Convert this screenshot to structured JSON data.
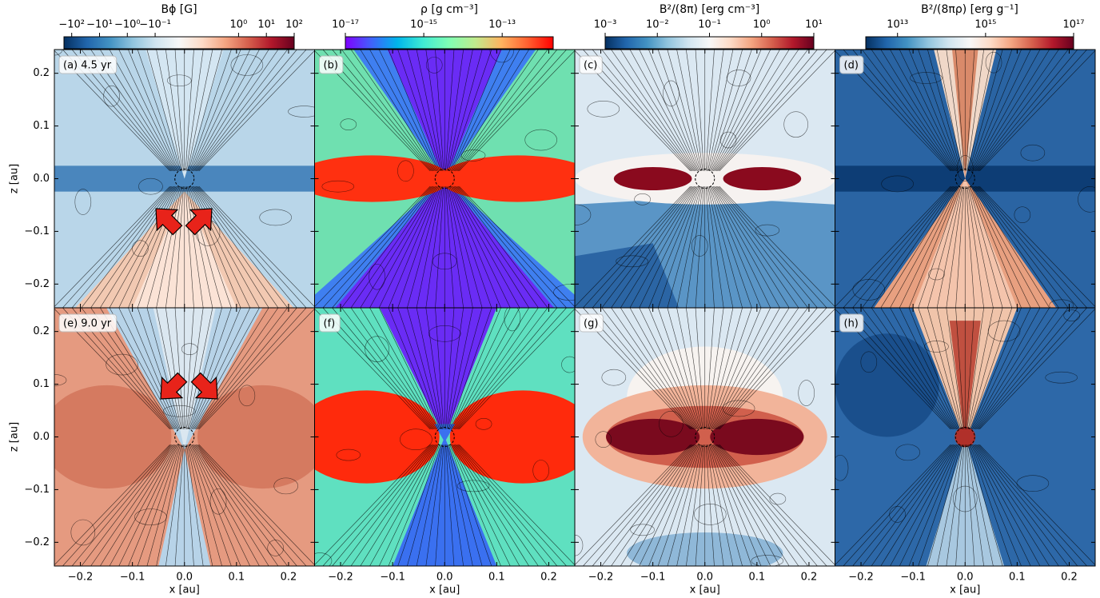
{
  "figure": {
    "xlim": [
      -0.25,
      0.25
    ],
    "ylim": [
      -0.245,
      0.245
    ],
    "xticks": [
      {
        "value": -0.2,
        "label": "−0.2"
      },
      {
        "value": -0.1,
        "label": "−0.1"
      },
      {
        "value": 0,
        "label": "0.0"
      },
      0.1,
      0.2
    ],
    "yticks": [
      0.2,
      0.1,
      {
        "value": 0,
        "label": "0.0"
      },
      {
        "value": -0.1,
        "label": "−0.1"
      },
      {
        "value": -0.2,
        "label": "−0.2"
      }
    ],
    "xlabel": "x [au]",
    "ylabel": "z [au]",
    "colorbars": [
      {
        "label": "Bϕ [G]",
        "scale": "symlog",
        "linthresh": 0.1,
        "lim": [
          -190,
          100
        ],
        "colors": [
          "#053061",
          "#2166ac",
          "#4393c3",
          "#92c5de",
          "#d1e5f0",
          "#f7f7f7",
          "#fddbc7",
          "#f4a582",
          "#d6604d",
          "#b2182b",
          "#67001f"
        ],
        "ticks": [
          {
            "value": -100,
            "label": "−10²"
          },
          {
            "value": -10,
            "label": "−10¹"
          },
          {
            "value": -1,
            "label": "−10⁰"
          },
          {
            "value": -0.1,
            "label": "−10⁻¹"
          },
          {
            "value": 1,
            "label": "10⁰"
          },
          {
            "value": 10,
            "label": "10¹"
          },
          {
            "value": 100,
            "label": "10²"
          }
        ]
      },
      {
        "label": "ρ [g cm⁻³]",
        "scale": "log",
        "lim": [
          1e-17,
          2e-12
        ],
        "colors": [
          "#7f00ff",
          "#4062fa",
          "#00b5eb",
          "#40ecd4",
          "#80ffb4",
          "#c0eb8d",
          "#ffb360",
          "#ff6231",
          "#ff0000"
        ],
        "ticks": [
          {
            "value": 1e-17,
            "label": "10⁻¹⁷"
          },
          {
            "value": 1e-15,
            "label": "10⁻¹⁵"
          },
          {
            "value": 1e-13,
            "label": "10⁻¹³"
          }
        ]
      },
      {
        "label": "B²/(8π) [erg cm⁻³]",
        "scale": "log",
        "lim": [
          0.001,
          10
        ],
        "colors": [
          "#053061",
          "#2166ac",
          "#4393c3",
          "#92c5de",
          "#d1e5f0",
          "#f7f7f7",
          "#fddbc7",
          "#f4a582",
          "#d6604d",
          "#b2182b",
          "#67001f"
        ],
        "ticks": [
          {
            "value": 0.001,
            "label": "10⁻³"
          },
          {
            "value": 0.01,
            "label": "10⁻²"
          },
          {
            "value": 0.1,
            "label": "10⁻¹"
          },
          {
            "value": 1,
            "label": "10⁰"
          },
          {
            "value": 10,
            "label": "10¹"
          }
        ]
      },
      {
        "label": "B²/(8πρ) [erg g⁻¹]",
        "scale": "log",
        "lim": [
          1900000000000.0,
          1e+17
        ],
        "colors": [
          "#053061",
          "#2166ac",
          "#4393c3",
          "#92c5de",
          "#d1e5f0",
          "#f7f7f7",
          "#fddbc7",
          "#f4a582",
          "#d6604d",
          "#b2182b",
          "#67001f"
        ],
        "ticks": [
          {
            "value": 10000000000000.0,
            "label": "10¹³"
          },
          {
            "value": 1000000000000000.0,
            "label": "10¹⁵"
          },
          {
            "value": 1e+17,
            "label": "10¹⁷"
          }
        ]
      }
    ],
    "panels": [
      {
        "label": "(a) 4.5 yr"
      },
      {
        "label": "(b)"
      },
      {
        "label": "(c)"
      },
      {
        "label": "(d)"
      },
      {
        "label": "(e) 9.0 yr"
      },
      {
        "label": "(f)"
      },
      {
        "label": "(g)"
      },
      {
        "label": "(h)"
      }
    ]
  }
}
